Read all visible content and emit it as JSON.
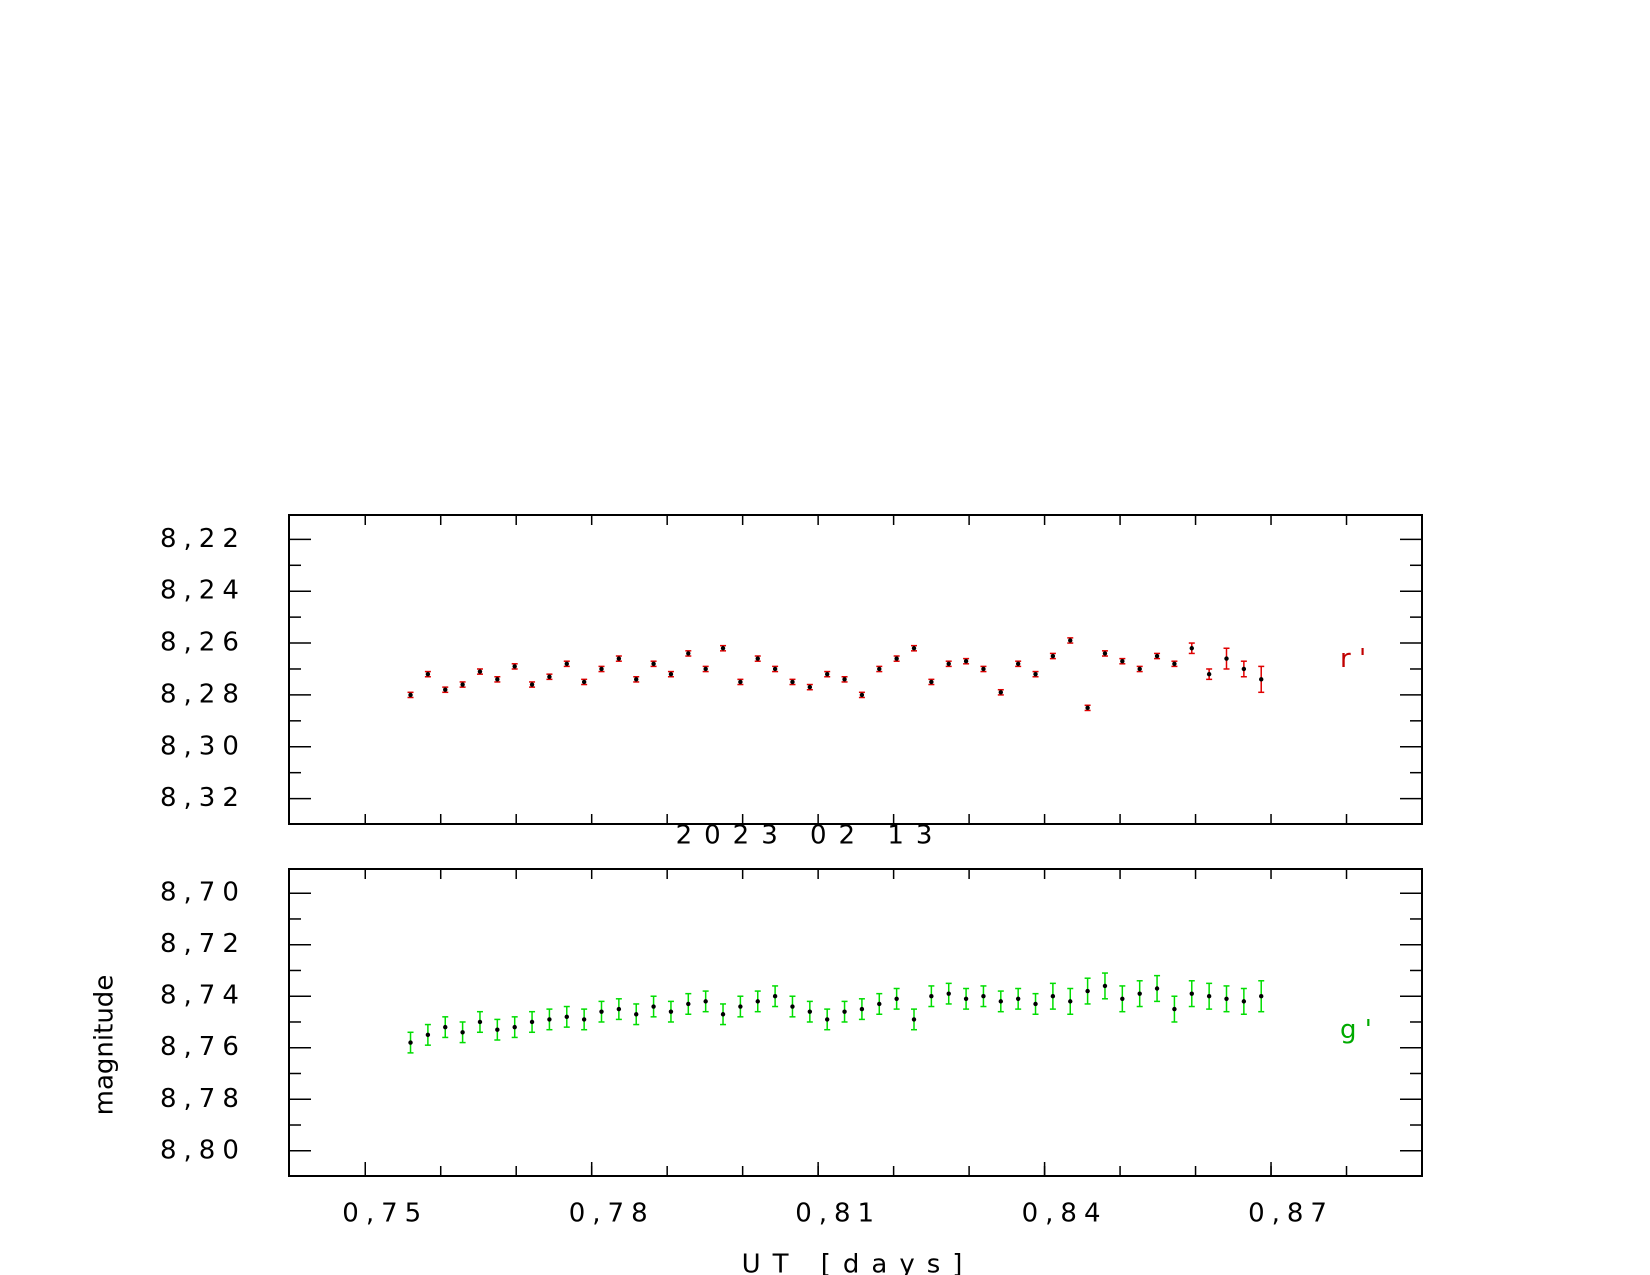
{
  "chart_data": [
    {
      "type": "errorbar",
      "series": [
        {
          "name": "r '",
          "color": "#e00000",
          "label_color": "#c00000",
          "x": [
            0.756,
            0.7583,
            0.7606,
            0.7629,
            0.7652,
            0.7675,
            0.7698,
            0.7721,
            0.7744,
            0.7767,
            0.779,
            0.7813,
            0.7836,
            0.7859,
            0.7882,
            0.7905,
            0.7928,
            0.7951,
            0.7974,
            0.7997,
            0.802,
            0.8043,
            0.8066,
            0.8089,
            0.8112,
            0.8135,
            0.8158,
            0.8181,
            0.8204,
            0.8227,
            0.825,
            0.8273,
            0.8296,
            0.8319,
            0.8342,
            0.8365,
            0.8388,
            0.8411,
            0.8434,
            0.8457,
            0.848,
            0.8503,
            0.8526,
            0.8549,
            0.8572,
            0.8595,
            0.8618,
            0.8641,
            0.8664,
            0.8687
          ],
          "values": [
            8.28,
            8.272,
            8.278,
            8.276,
            8.271,
            8.274,
            8.269,
            8.276,
            8.273,
            8.268,
            8.275,
            8.27,
            8.266,
            8.274,
            8.268,
            8.272,
            8.264,
            8.27,
            8.262,
            8.275,
            8.266,
            8.27,
            8.275,
            8.277,
            8.272,
            8.274,
            8.28,
            8.27,
            8.266,
            8.262,
            8.275,
            8.268,
            8.267,
            8.27,
            8.279,
            8.268,
            8.272,
            8.265,
            8.259,
            8.285,
            8.264,
            8.267,
            8.27,
            8.265,
            8.268,
            8.262,
            8.272,
            8.266,
            8.27,
            8.274
          ],
          "errors": [
            0.001,
            0.001,
            0.001,
            0.001,
            0.001,
            0.001,
            0.001,
            0.001,
            0.001,
            0.001,
            0.001,
            0.001,
            0.001,
            0.001,
            0.001,
            0.001,
            0.001,
            0.001,
            0.001,
            0.001,
            0.001,
            0.001,
            0.001,
            0.001,
            0.001,
            0.001,
            0.001,
            0.001,
            0.001,
            0.001,
            0.001,
            0.001,
            0.001,
            0.001,
            0.001,
            0.001,
            0.001,
            0.001,
            0.001,
            0.001,
            0.001,
            0.001,
            0.001,
            0.001,
            0.001,
            0.002,
            0.002,
            0.004,
            0.003,
            0.005
          ]
        }
      ],
      "xlim": [
        0.7399,
        0.89
      ],
      "ylim": [
        8.2106,
        8.3298
      ],
      "y_inverted": true,
      "yticks": [
        {
          "value": 8.22,
          "label": "8,22"
        },
        {
          "value": 8.24,
          "label": "8,24"
        },
        {
          "value": 8.26,
          "label": "8,26"
        },
        {
          "value": 8.28,
          "label": "8,28"
        },
        {
          "value": 8.3,
          "label": "8,30"
        },
        {
          "value": 8.32,
          "label": "8,32"
        }
      ],
      "yminor_ticks": [
        8.23,
        8.25,
        8.27,
        8.29,
        8.31
      ],
      "xminor_ticks": [
        0.75,
        0.76,
        0.77,
        0.78,
        0.79,
        0.8,
        0.81,
        0.82,
        0.83,
        0.84,
        0.85,
        0.86,
        0.87,
        0.88
      ]
    },
    {
      "type": "errorbar",
      "title": "2023 02 13",
      "x_label": "UT [days]",
      "y_label": "magnitude",
      "series": [
        {
          "name": "g '",
          "color": "#00dd00",
          "label_color": "#00aa00",
          "x": [
            0.756,
            0.7583,
            0.7606,
            0.7629,
            0.7652,
            0.7675,
            0.7698,
            0.7721,
            0.7744,
            0.7767,
            0.779,
            0.7813,
            0.7836,
            0.7859,
            0.7882,
            0.7905,
            0.7928,
            0.7951,
            0.7974,
            0.7997,
            0.802,
            0.8043,
            0.8066,
            0.8089,
            0.8112,
            0.8135,
            0.8158,
            0.8181,
            0.8204,
            0.8227,
            0.825,
            0.8273,
            0.8296,
            0.8319,
            0.8342,
            0.8365,
            0.8388,
            0.8411,
            0.8434,
            0.8457,
            0.848,
            0.8503,
            0.8526,
            0.8549,
            0.8572,
            0.8595,
            0.8618,
            0.8641,
            0.8664,
            0.8687
          ],
          "values": [
            8.758,
            8.755,
            8.752,
            8.754,
            8.75,
            8.753,
            8.752,
            8.75,
            8.749,
            8.748,
            8.749,
            8.746,
            8.745,
            8.747,
            8.744,
            8.746,
            8.743,
            8.742,
            8.747,
            8.744,
            8.742,
            8.74,
            8.744,
            8.746,
            8.749,
            8.746,
            8.745,
            8.743,
            8.741,
            8.749,
            8.74,
            8.739,
            8.741,
            8.74,
            8.742,
            8.741,
            8.743,
            8.74,
            8.742,
            8.738,
            8.736,
            8.741,
            8.739,
            8.737,
            8.745,
            8.739,
            8.74,
            8.741,
            8.742,
            8.74
          ],
          "errors": [
            0.004,
            0.004,
            0.004,
            0.004,
            0.004,
            0.004,
            0.004,
            0.004,
            0.004,
            0.004,
            0.004,
            0.004,
            0.004,
            0.004,
            0.004,
            0.004,
            0.004,
            0.004,
            0.004,
            0.004,
            0.004,
            0.004,
            0.004,
            0.004,
            0.004,
            0.004,
            0.004,
            0.004,
            0.004,
            0.004,
            0.004,
            0.004,
            0.004,
            0.004,
            0.004,
            0.004,
            0.004,
            0.005,
            0.005,
            0.005,
            0.005,
            0.005,
            0.005,
            0.005,
            0.005,
            0.005,
            0.005,
            0.005,
            0.005,
            0.006
          ]
        }
      ],
      "xlim": [
        0.7399,
        0.89
      ],
      "ylim": [
        8.6906,
        8.8098
      ],
      "y_inverted": true,
      "yticks": [
        {
          "value": 8.7,
          "label": "8,70"
        },
        {
          "value": 8.72,
          "label": "8,72"
        },
        {
          "value": 8.74,
          "label": "8,74"
        },
        {
          "value": 8.76,
          "label": "8,76"
        },
        {
          "value": 8.78,
          "label": "8,78"
        },
        {
          "value": 8.8,
          "label": "8,80"
        }
      ],
      "yminor_ticks": [
        8.71,
        8.73,
        8.75,
        8.77,
        8.79
      ],
      "xticks": [
        {
          "value": 0.75,
          "label": "0,75"
        },
        {
          "value": 0.78,
          "label": "0,78"
        },
        {
          "value": 0.81,
          "label": "0,81"
        },
        {
          "value": 0.84,
          "label": "0,84"
        },
        {
          "value": 0.87,
          "label": "0,87"
        }
      ],
      "xminor_ticks": [
        0.75,
        0.76,
        0.77,
        0.78,
        0.79,
        0.8,
        0.81,
        0.82,
        0.83,
        0.84,
        0.85,
        0.86,
        0.87,
        0.88
      ]
    }
  ]
}
